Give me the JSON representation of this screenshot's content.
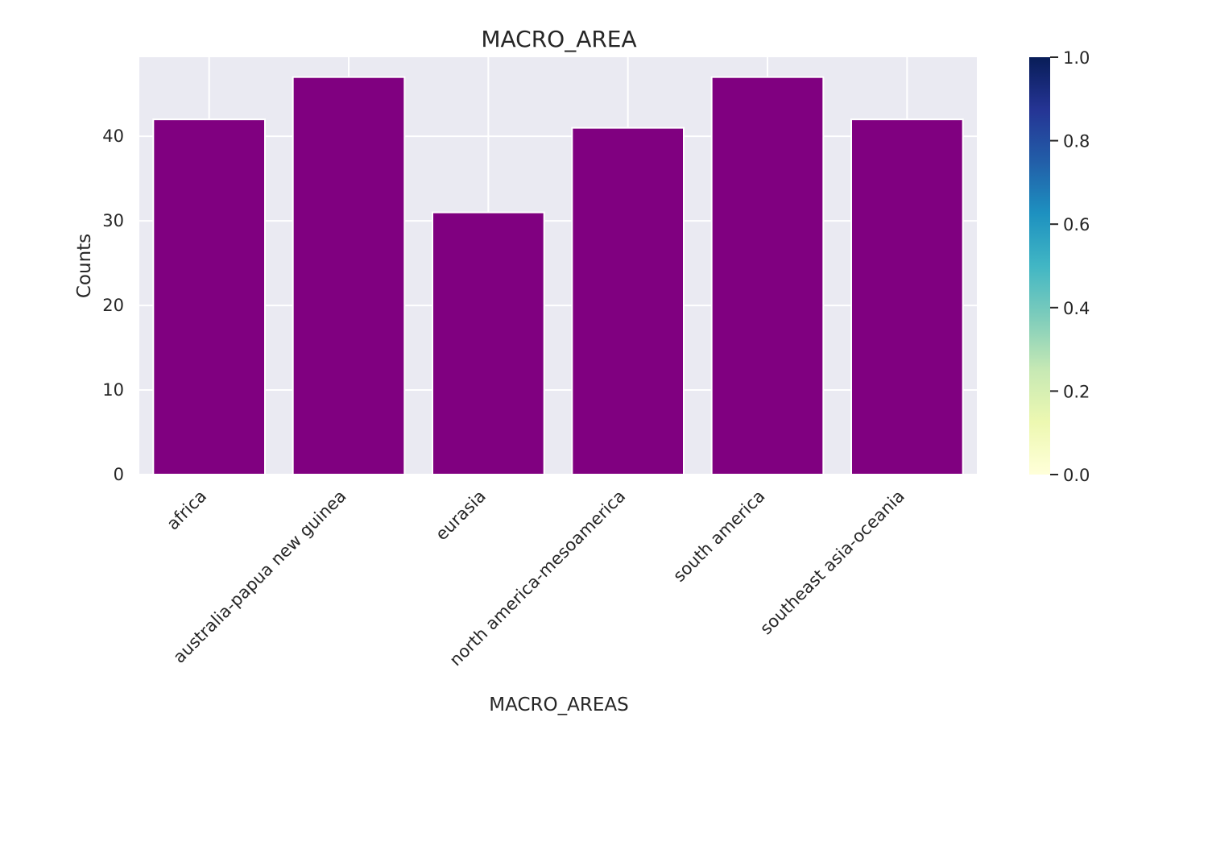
{
  "chart_data": {
    "type": "bar",
    "title": "MACRO_AREA",
    "xlabel": "MACRO_AREAS",
    "ylabel": "Counts",
    "categories": [
      "africa",
      "australia-papua new guinea",
      "eurasia",
      "north america-mesoamerica",
      "south america",
      "southeast asia-oceania"
    ],
    "values": [
      42,
      47,
      31,
      41,
      47,
      42
    ],
    "ylim": [
      0,
      49.35
    ],
    "yticks": [
      0,
      10,
      20,
      30,
      40
    ],
    "grid": true,
    "bar_color": "#800080",
    "plot_background": "#eaeaf2",
    "colorbar": {
      "colormap": "YlGnBu",
      "ticks": [
        "0.0",
        "0.2",
        "0.4",
        "0.6",
        "0.8",
        "1.0"
      ],
      "colors": [
        "#ffffd9",
        "#edf8b1",
        "#c7e9b4",
        "#7fcdbb",
        "#41b6c4",
        "#1d91c0",
        "#225ea8",
        "#253494",
        "#081d58"
      ]
    }
  }
}
